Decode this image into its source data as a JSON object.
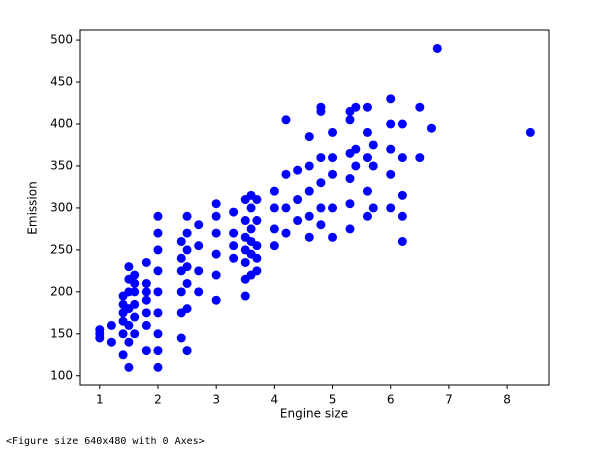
{
  "chart_data": {
    "type": "scatter",
    "xlabel": "Engine size",
    "ylabel": "Emission",
    "color": "#0000ff",
    "xlim": [
      0.66,
      8.72
    ],
    "ylim": [
      89,
      512
    ],
    "xticks": [
      1,
      2,
      3,
      4,
      5,
      6,
      7,
      8
    ],
    "yticks": [
      100,
      150,
      200,
      250,
      300,
      350,
      400,
      450,
      500
    ],
    "x": [
      1.0,
      1.0,
      1.0,
      1.2,
      1.2,
      1.4,
      1.4,
      1.4,
      1.4,
      1.4,
      1.4,
      1.5,
      1.5,
      1.5,
      1.5,
      1.5,
      1.5,
      1.5,
      1.6,
      1.6,
      1.6,
      1.6,
      1.6,
      1.6,
      1.8,
      1.8,
      1.8,
      1.8,
      1.8,
      1.8,
      1.8,
      2.0,
      2.0,
      2.0,
      2.0,
      2.0,
      2.0,
      2.0,
      2.0,
      2.0,
      2.4,
      2.4,
      2.4,
      2.4,
      2.4,
      2.4,
      2.5,
      2.5,
      2.5,
      2.5,
      2.5,
      2.5,
      2.5,
      2.7,
      2.7,
      2.7,
      2.7,
      3.0,
      3.0,
      3.0,
      3.0,
      3.0,
      3.0,
      3.3,
      3.3,
      3.3,
      3.3,
      3.5,
      3.5,
      3.5,
      3.5,
      3.5,
      3.5,
      3.5,
      3.6,
      3.6,
      3.6,
      3.6,
      3.6,
      3.6,
      3.7,
      3.7,
      3.7,
      3.7,
      3.7,
      4.0,
      4.0,
      4.0,
      4.0,
      4.2,
      4.2,
      4.2,
      4.2,
      4.4,
      4.4,
      4.4,
      4.6,
      4.6,
      4.6,
      4.6,
      4.6,
      4.8,
      4.8,
      4.8,
      4.8,
      4.8,
      4.8,
      5.0,
      5.0,
      5.0,
      5.0,
      5.0,
      5.3,
      5.3,
      5.3,
      5.3,
      5.3,
      5.3,
      5.4,
      5.4,
      5.4,
      5.6,
      5.6,
      5.6,
      5.6,
      5.6,
      5.7,
      5.7,
      5.7,
      6.0,
      6.0,
      6.0,
      6.0,
      6.0,
      6.2,
      6.2,
      6.2,
      6.2,
      6.2,
      6.5,
      6.5,
      6.7,
      6.8,
      8.4
    ],
    "y": [
      150,
      145,
      155,
      140,
      160,
      125,
      150,
      165,
      175,
      185,
      195,
      110,
      140,
      160,
      180,
      200,
      215,
      230,
      150,
      170,
      185,
      200,
      210,
      220,
      130,
      160,
      175,
      190,
      200,
      210,
      235,
      110,
      130,
      150,
      175,
      200,
      225,
      250,
      270,
      290,
      145,
      175,
      200,
      225,
      240,
      260,
      130,
      180,
      210,
      230,
      250,
      270,
      290,
      200,
      225,
      255,
      280,
      190,
      220,
      245,
      270,
      290,
      305,
      240,
      255,
      270,
      295,
      195,
      215,
      235,
      250,
      265,
      285,
      310,
      220,
      245,
      260,
      275,
      300,
      315,
      225,
      240,
      255,
      285,
      310,
      255,
      275,
      300,
      320,
      270,
      300,
      340,
      405,
      285,
      310,
      345,
      265,
      290,
      320,
      350,
      385,
      280,
      300,
      330,
      360,
      415,
      420,
      265,
      300,
      340,
      360,
      390,
      275,
      305,
      335,
      365,
      405,
      415,
      350,
      370,
      420,
      290,
      320,
      360,
      390,
      420,
      300,
      350,
      375,
      300,
      340,
      370,
      400,
      430,
      260,
      290,
      315,
      360,
      400,
      360,
      420,
      395,
      490,
      390
    ]
  },
  "output": "<Figure size 640x480 with 0 Axes>"
}
